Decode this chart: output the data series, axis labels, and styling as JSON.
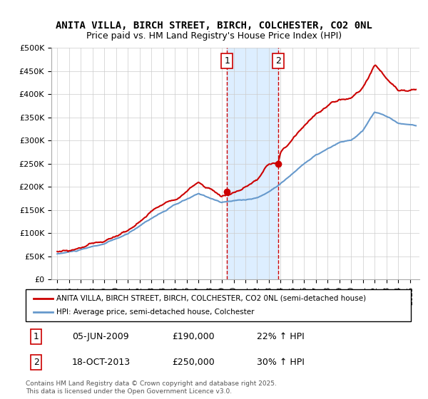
{
  "title": "ANITA VILLA, BIRCH STREET, BIRCH, COLCHESTER, CO2 0NL",
  "subtitle": "Price paid vs. HM Land Registry's House Price Index (HPI)",
  "ylim": [
    0,
    500000
  ],
  "yticks": [
    0,
    50000,
    100000,
    150000,
    200000,
    250000,
    300000,
    350000,
    400000,
    450000,
    500000
  ],
  "ytick_labels": [
    "£0",
    "£50K",
    "£100K",
    "£150K",
    "£200K",
    "£250K",
    "£300K",
    "£350K",
    "£400K",
    "£450K",
    "£500K"
  ],
  "sale1_date": 2009.43,
  "sale1_price": 190000,
  "sale1_label": "1",
  "sale1_text": "05-JUN-2009",
  "sale1_pct": "22%",
  "sale2_date": 2013.8,
  "sale2_price": 250000,
  "sale2_label": "2",
  "sale2_text": "18-OCT-2013",
  "sale2_pct": "30%",
  "red_line_color": "#cc0000",
  "blue_line_color": "#6699cc",
  "shaded_color": "#ddeeff",
  "dashed_color": "#cc0000",
  "legend_label1": "ANITA VILLA, BIRCH STREET, BIRCH, COLCHESTER, CO2 0NL (semi-detached house)",
  "legend_label2": "HPI: Average price, semi-detached house, Colchester",
  "footer1": "Contains HM Land Registry data © Crown copyright and database right 2025.",
  "footer2": "This data is licensed under the Open Government Licence v3.0.",
  "box1_date_str": "05-JUN-2009",
  "box1_price_str": "£190,000",
  "box1_pct_str": "22% ↑ HPI",
  "box2_date_str": "18-OCT-2013",
  "box2_price_str": "£250,000",
  "box2_pct_str": "30% ↑ HPI"
}
